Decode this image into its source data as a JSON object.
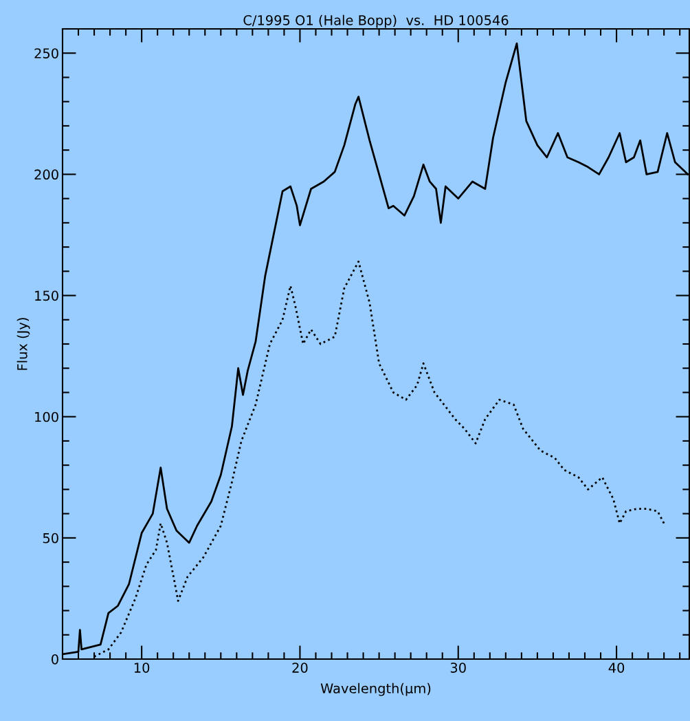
{
  "chart_data": {
    "type": "line",
    "title": "C/1995 O1 (Hale Bopp)  vs.  HD 100546",
    "xlabel": "Wavelength(μm)",
    "ylabel": "Flux (Jy)",
    "xlim": [
      5,
      44.6
    ],
    "ylim": [
      0,
      260
    ],
    "xticks": [
      10,
      20,
      30,
      40
    ],
    "yticks": [
      0,
      50,
      100,
      150,
      200,
      250
    ],
    "grid": false,
    "legend": false,
    "marker": "none",
    "series": [
      {
        "color": "#000000",
        "line_style": "solid",
        "x": [
          5.0,
          6.0,
          6.1,
          6.2,
          6.8,
          7.4,
          7.9,
          8.5,
          9.2,
          10.0,
          10.7,
          11.2,
          11.6,
          12.2,
          13.0,
          13.5,
          14.4,
          15.0,
          15.7,
          16.1,
          16.4,
          16.7,
          17.2,
          17.8,
          18.9,
          19.4,
          19.8,
          20.0,
          20.7,
          21.5,
          22.2,
          22.8,
          23.5,
          23.7,
          24.4,
          25.0,
          25.6,
          25.9,
          26.6,
          27.2,
          27.8,
          28.2,
          28.6,
          28.9,
          29.2,
          30.0,
          30.9,
          31.7,
          32.2,
          33.0,
          33.7,
          34.3,
          35.0,
          35.6,
          36.3,
          36.9,
          37.6,
          38.2,
          38.9,
          39.5,
          40.2,
          40.6,
          41.1,
          41.5,
          41.9,
          42.6,
          43.2,
          43.7,
          44.5
        ],
        "values": [
          2,
          3,
          12,
          4,
          5,
          6,
          19,
          22,
          31,
          52,
          60,
          79,
          62,
          53,
          48,
          55,
          65,
          76,
          96,
          120,
          109,
          119,
          131,
          158,
          193,
          195,
          187,
          179,
          194,
          197,
          201,
          212,
          229,
          232,
          214,
          200,
          186,
          187,
          183,
          191,
          204,
          197,
          194,
          180,
          195,
          190,
          197,
          194,
          215,
          238,
          254,
          222,
          212,
          207,
          217,
          207,
          205,
          203,
          200,
          207,
          217,
          205,
          207,
          214,
          200,
          201,
          217,
          205,
          200
        ]
      },
      {
        "color": "#000000",
        "line_style": "dotted",
        "x": [
          7.0,
          7.9,
          8.7,
          9.6,
          10.3,
          10.9,
          11.2,
          11.6,
          12.1,
          12.3,
          12.9,
          13.9,
          15.0,
          15.7,
          16.3,
          17.2,
          18.1,
          18.9,
          19.4,
          19.7,
          20.2,
          20.7,
          21.3,
          22.2,
          22.8,
          23.7,
          24.4,
          25.0,
          25.9,
          26.7,
          27.4,
          27.8,
          28.5,
          29.1,
          29.8,
          30.4,
          31.1,
          31.7,
          32.6,
          33.5,
          34.1,
          35.2,
          36.1,
          36.7,
          37.6,
          38.2,
          39.1,
          39.8,
          40.2,
          40.6,
          41.3,
          41.9,
          42.6,
          43.0
        ],
        "values": [
          1,
          4,
          11,
          25,
          39,
          45,
          56,
          48,
          31,
          24,
          34,
          42,
          55,
          73,
          90,
          105,
          130,
          140,
          154,
          146,
          130,
          136,
          130,
          133,
          153,
          164,
          147,
          122,
          110,
          107,
          113,
          122,
          110,
          105,
          99,
          95,
          89,
          99,
          107,
          105,
          95,
          86,
          83,
          78,
          75,
          70,
          75,
          66,
          56,
          61,
          62,
          62,
          61,
          56
        ]
      }
    ]
  }
}
